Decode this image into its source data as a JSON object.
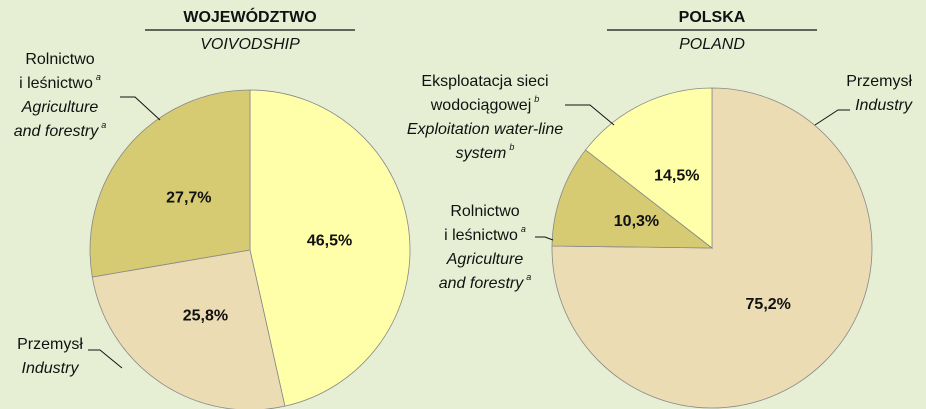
{
  "chart_data": [
    {
      "type": "pie",
      "title": "WOJEWÓDZTWO",
      "subtitle": "VOIVODSHIP",
      "categories": [
        [
          "Eksploatacja sieci",
          "wodociągowej"
        ],
        [
          "Przemysł"
        ],
        [
          "Rolnictwo",
          "i leśnictwo"
        ]
      ],
      "categories_en": [
        [
          "Exploitation water-line",
          "system"
        ],
        [
          "Industry"
        ],
        [
          "Agriculture",
          "and forestry"
        ]
      ],
      "notes": [
        "b",
        null,
        "a"
      ],
      "values": [
        46.5,
        25.8,
        27.7
      ],
      "value_labels": [
        "46,5%",
        "25,8%",
        "27,7%"
      ],
      "colors": [
        "#ffffaa",
        "#ebdcb4",
        "#d6ca72"
      ]
    },
    {
      "type": "pie",
      "title": "POLSKA",
      "subtitle": "POLAND",
      "categories": [
        [
          "Przemysł"
        ],
        [
          "Rolnictwo",
          "i leśnictwo"
        ],
        [
          "Eksploatacja sieci",
          "wodociągowej"
        ]
      ],
      "categories_en": [
        [
          "Industry"
        ],
        [
          "Agriculture",
          "and forestry"
        ],
        [
          "Exploitation water-line",
          "system"
        ]
      ],
      "notes": [
        null,
        "a",
        "b"
      ],
      "values": [
        75.2,
        10.3,
        14.5
      ],
      "value_labels": [
        "75,2%",
        "10,3%",
        "14,5%"
      ],
      "colors": [
        "#ebdcb4",
        "#d6ca72",
        "#ffffaa"
      ]
    }
  ]
}
